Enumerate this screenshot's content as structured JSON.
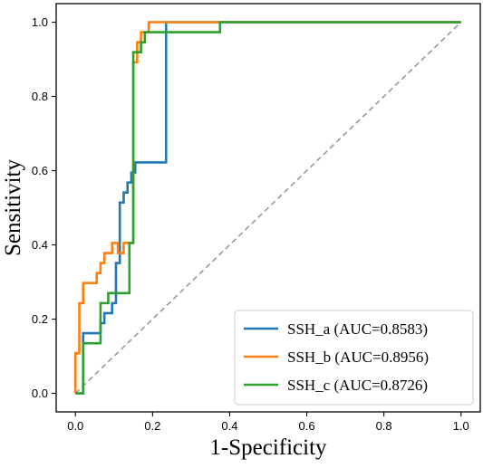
{
  "chart_data": {
    "type": "line",
    "title": "",
    "xlabel": "1-Specificity",
    "ylabel": "Sensitivity",
    "xlim": [
      -0.05,
      1.05
    ],
    "ylim": [
      -0.05,
      1.05
    ],
    "xticks": [
      "0.0",
      "0.2",
      "0.4",
      "0.6",
      "0.8",
      "1.0"
    ],
    "yticks": [
      "0.0",
      "0.2",
      "0.4",
      "0.6",
      "0.8",
      "1.0"
    ],
    "xtick_values": [
      0,
      0.2,
      0.4,
      0.6,
      0.8,
      1.0
    ],
    "ytick_values": [
      0,
      0.2,
      0.4,
      0.6,
      0.8,
      1.0
    ],
    "grid": false,
    "legend_position": "lower-right",
    "reference_line": {
      "x": [
        0,
        1
      ],
      "y": [
        0,
        1
      ],
      "color": "#999999",
      "style": "dashed"
    },
    "series": [
      {
        "name": "SSH_a (AUC=0.8583)",
        "color": "#1f77b4",
        "x": [
          0,
          0.02,
          0.02,
          0.065,
          0.065,
          0.075,
          0.075,
          0.095,
          0.095,
          0.105,
          0.105,
          0.115,
          0.115,
          0.125,
          0.125,
          0.135,
          0.135,
          0.145,
          0.145,
          0.155,
          0.155,
          0.235,
          0.235,
          1.0
        ],
        "y": [
          0,
          0,
          0.162,
          0.162,
          0.189,
          0.189,
          0.216,
          0.216,
          0.243,
          0.243,
          0.351,
          0.351,
          0.514,
          0.514,
          0.541,
          0.541,
          0.568,
          0.568,
          0.595,
          0.595,
          0.622,
          0.622,
          1.0,
          1.0
        ]
      },
      {
        "name": "SSH_b (AUC=0.8956)",
        "color": "#ff7f0e",
        "x": [
          0,
          0,
          0.01,
          0.01,
          0.02,
          0.02,
          0.055,
          0.055,
          0.065,
          0.065,
          0.075,
          0.075,
          0.095,
          0.095,
          0.11,
          0.11,
          0.125,
          0.125,
          0.15,
          0.15,
          0.16,
          0.16,
          0.17,
          0.17,
          0.19,
          0.19,
          1.0
        ],
        "y": [
          0,
          0.108,
          0.108,
          0.243,
          0.243,
          0.297,
          0.297,
          0.324,
          0.324,
          0.351,
          0.351,
          0.378,
          0.378,
          0.405,
          0.405,
          0.378,
          0.378,
          0.405,
          0.405,
          0.892,
          0.892,
          0.946,
          0.946,
          0.973,
          0.973,
          1.0,
          1.0
        ]
      },
      {
        "name": "SSH_c (AUC=0.8726)",
        "color": "#2ca02c",
        "x": [
          0,
          0.02,
          0.02,
          0.065,
          0.065,
          0.085,
          0.085,
          0.11,
          0.11,
          0.14,
          0.14,
          0.15,
          0.15,
          0.17,
          0.17,
          0.18,
          0.18,
          0.195,
          0.195,
          0.375,
          0.375,
          1.0
        ],
        "y": [
          0,
          0,
          0.135,
          0.135,
          0.243,
          0.243,
          0.27,
          0.27,
          0.27,
          0.27,
          0.405,
          0.405,
          0.919,
          0.919,
          0.946,
          0.946,
          0.973,
          0.973,
          0.973,
          0.973,
          1.0,
          1.0
        ]
      }
    ]
  }
}
